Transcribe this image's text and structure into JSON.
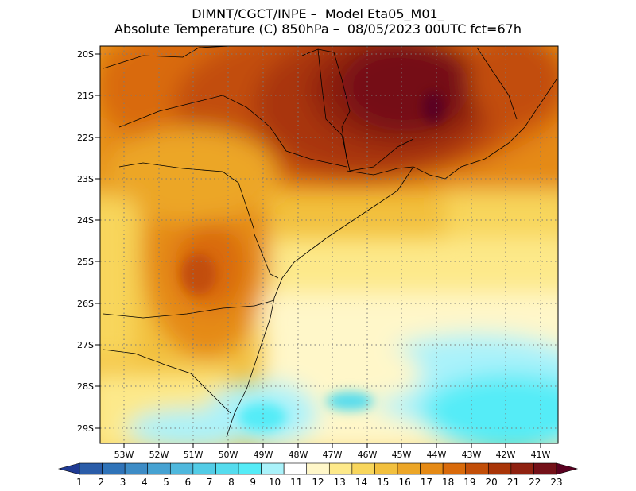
{
  "title": {
    "line1": "DIMNT/CGCT/INPE –  Model Eta05_M01_",
    "line2": "Absolute Temperature (C) 850hPa –  08/05/2023 00UTC fct=67h"
  },
  "map": {
    "lat_labels": [
      "20S",
      "21S",
      "22S",
      "23S",
      "24S",
      "25S",
      "26S",
      "27S",
      "28S",
      "29S"
    ],
    "lon_labels": [
      "53W",
      "52W",
      "51W",
      "50W",
      "49W",
      "48W",
      "47W",
      "46W",
      "45W",
      "44W",
      "43W",
      "42W",
      "41W"
    ],
    "grid": "dotted"
  },
  "colorbar": {
    "labels": [
      "1",
      "2",
      "3",
      "4",
      "5",
      "6",
      "7",
      "8",
      "9",
      "10",
      "11",
      "12",
      "13",
      "14",
      "15",
      "16",
      "17",
      "18",
      "19",
      "20",
      "21",
      "22",
      "23"
    ],
    "colors": [
      "#1f3a93",
      "#2a5ca8",
      "#2f73b8",
      "#3d8cc6",
      "#46a2d2",
      "#4fb8dd",
      "#53cce6",
      "#55dcee",
      "#55ecf7",
      "#aaf2fa",
      "#ffffff",
      "#fff7c9",
      "#fde98a",
      "#f8d65c",
      "#f2c03e",
      "#eca627",
      "#e58a15",
      "#d96a0a",
      "#c24e08",
      "#a93508",
      "#8f2110",
      "#741018",
      "#5a0020"
    ]
  }
}
